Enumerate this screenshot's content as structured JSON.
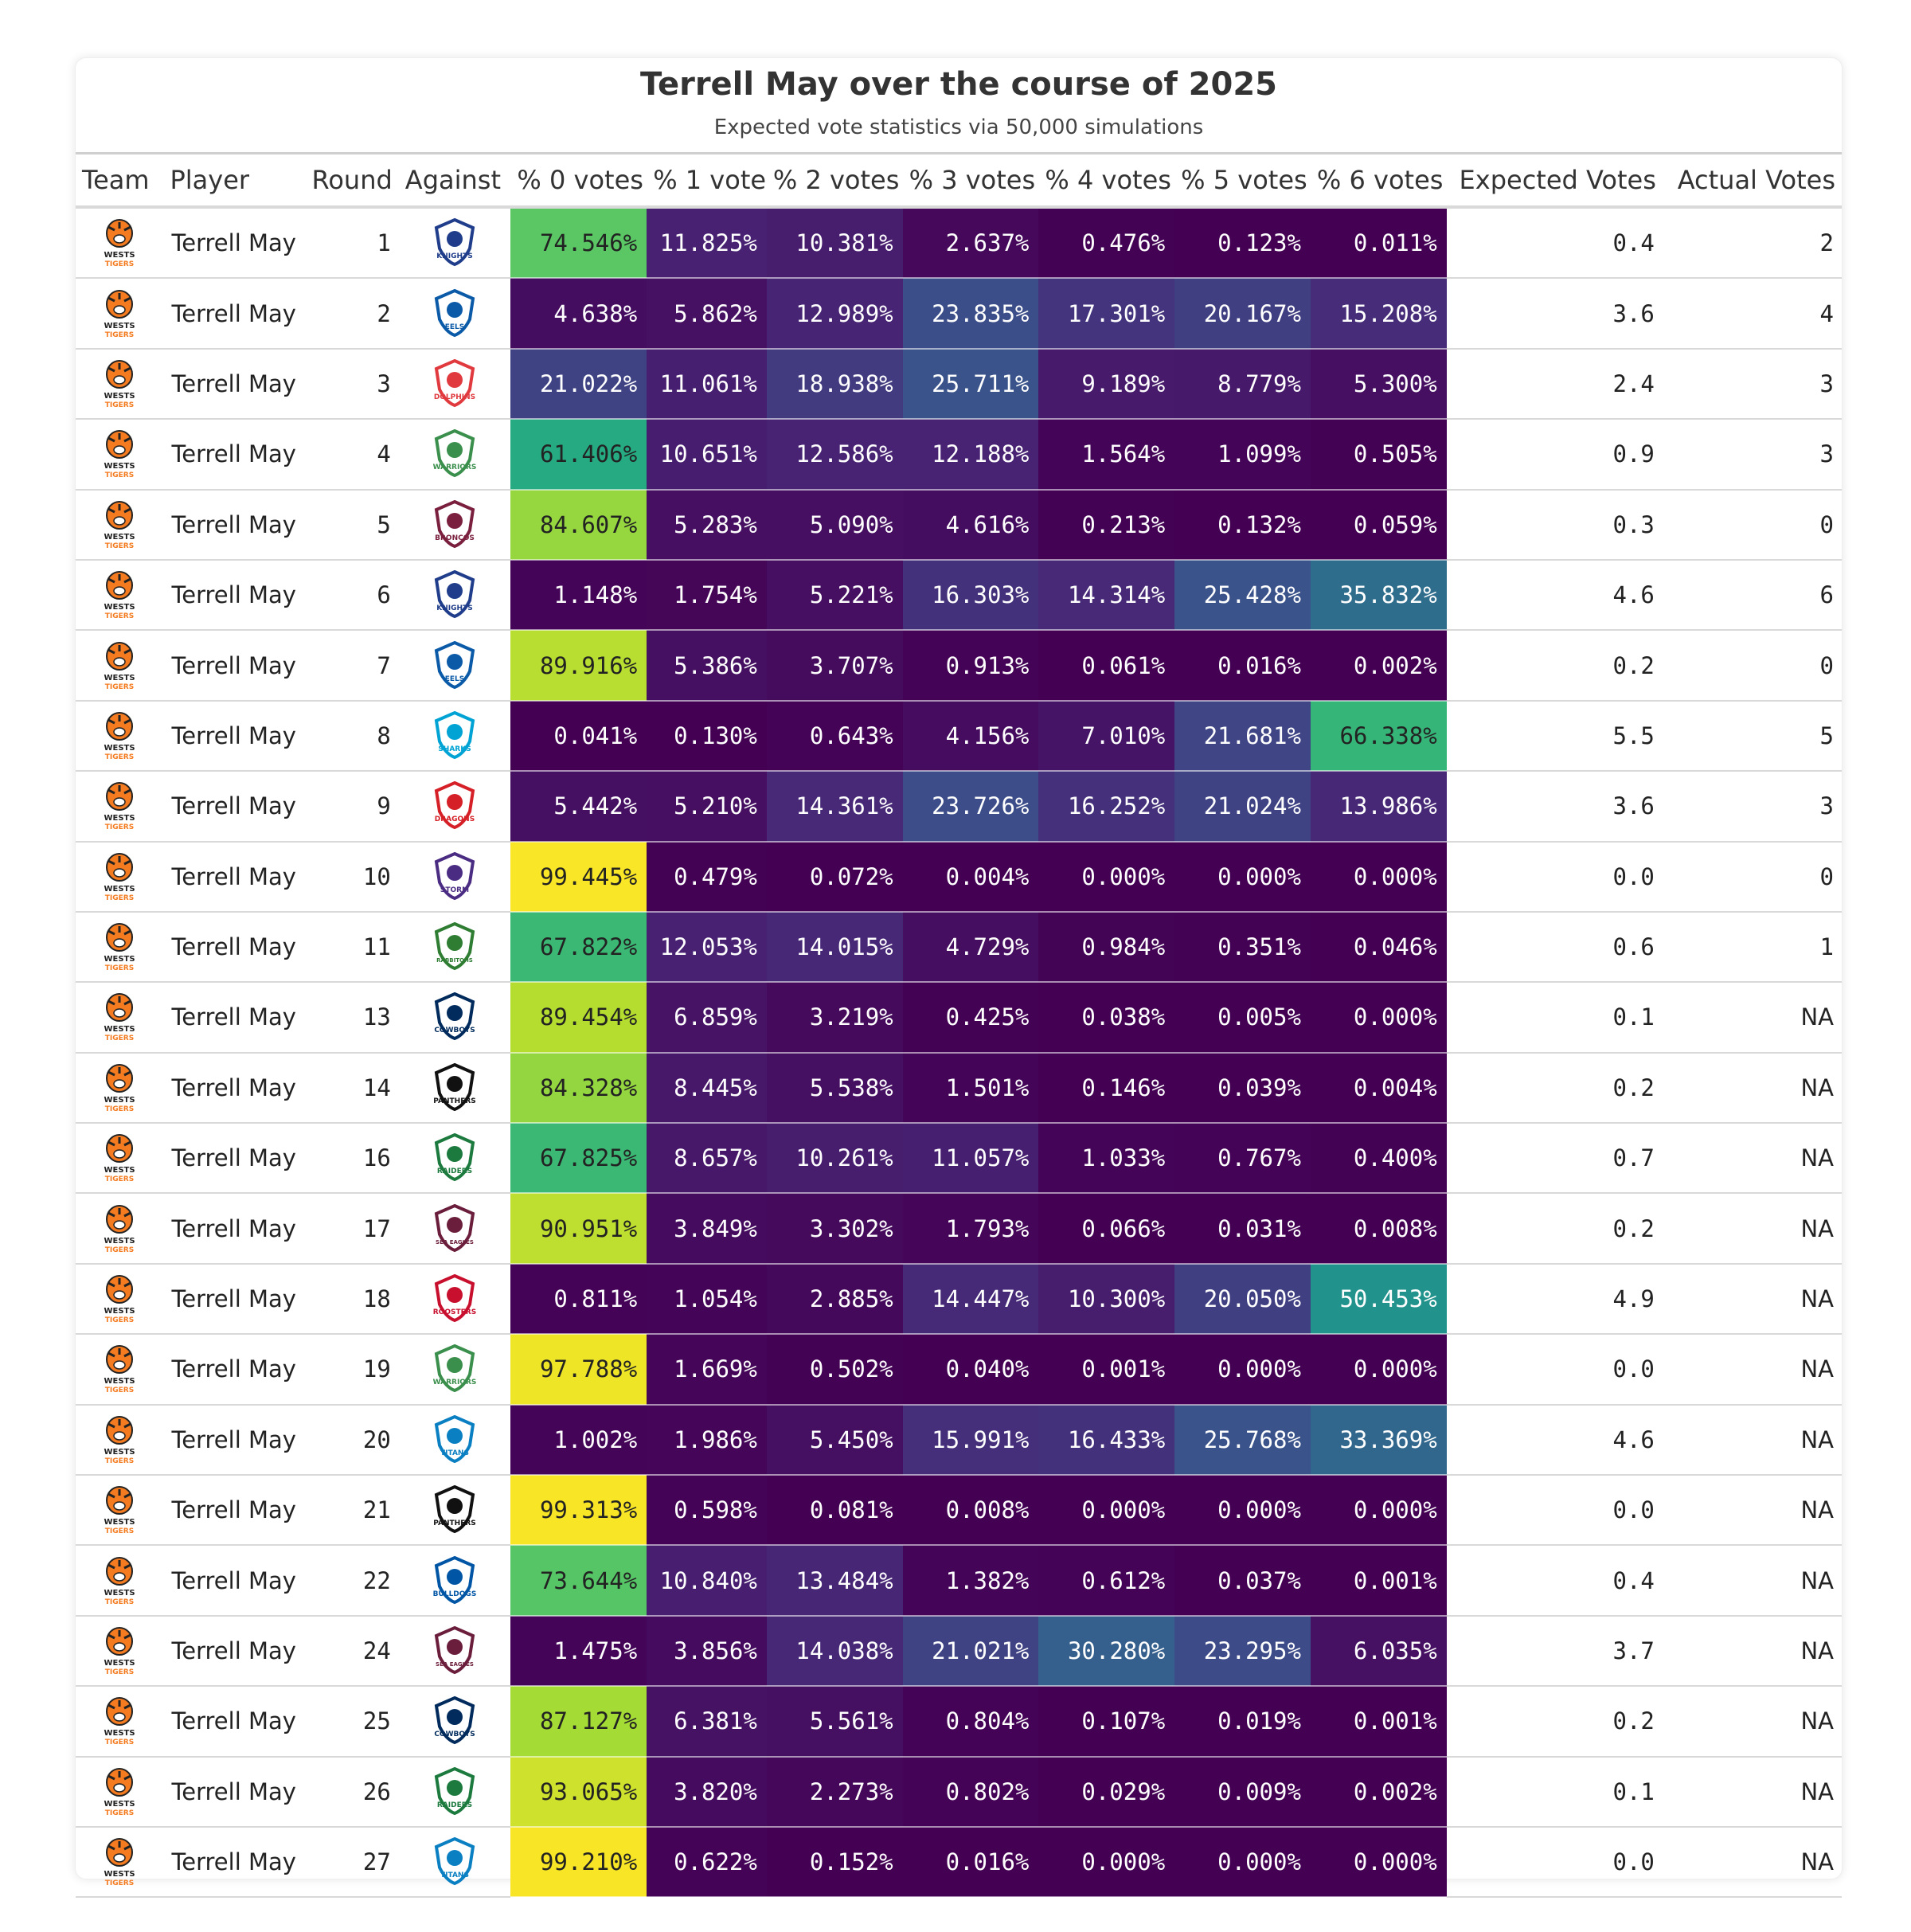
{
  "chart_data": {
    "type": "table",
    "title": "Terrell May over the course of 2025",
    "subtitle": "Expected vote statistics via 50,000 simulations",
    "columns": [
      "Team",
      "Player",
      "Round",
      "Against",
      "% 0 votes",
      "% 1 vote",
      "% 2 votes",
      "% 3 votes",
      "% 4 votes",
      "% 5 votes",
      "% 6 votes",
      "Expected Votes",
      "Actual Votes"
    ],
    "team": {
      "name": "WESTS TIGERS",
      "top": "WESTS",
      "bottom": "TIGERS",
      "color": "#f47b20"
    },
    "rows": [
      {
        "player": "Terrell May",
        "round": "1",
        "against": {
          "label": "KNIGHTS",
          "color": "#1f3d8a"
        },
        "pct": [
          "74.546%",
          "11.825%",
          "10.381%",
          "2.637%",
          "0.476%",
          "0.123%",
          "0.011%"
        ],
        "expected": "0.4",
        "actual": "2"
      },
      {
        "player": "Terrell May",
        "round": "2",
        "against": {
          "label": "EELS",
          "color": "#0a5aa8"
        },
        "pct": [
          "4.638%",
          "5.862%",
          "12.989%",
          "23.835%",
          "17.301%",
          "20.167%",
          "15.208%"
        ],
        "expected": "3.6",
        "actual": "4"
      },
      {
        "player": "Terrell May",
        "round": "3",
        "against": {
          "label": "DOLPHINS",
          "color": "#e03a3e"
        },
        "pct": [
          "21.022%",
          "11.061%",
          "18.938%",
          "25.711%",
          "9.189%",
          "8.779%",
          "5.300%"
        ],
        "expected": "2.4",
        "actual": "3"
      },
      {
        "player": "Terrell May",
        "round": "4",
        "against": {
          "label": "WARRIORS",
          "color": "#3b8f4c"
        },
        "pct": [
          "61.406%",
          "10.651%",
          "12.586%",
          "12.188%",
          "1.564%",
          "1.099%",
          "0.505%"
        ],
        "expected": "0.9",
        "actual": "3"
      },
      {
        "player": "Terrell May",
        "round": "5",
        "against": {
          "label": "BRONCOS",
          "color": "#7a1f3d"
        },
        "pct": [
          "84.607%",
          "5.283%",
          "5.090%",
          "4.616%",
          "0.213%",
          "0.132%",
          "0.059%"
        ],
        "expected": "0.3",
        "actual": "0"
      },
      {
        "player": "Terrell May",
        "round": "6",
        "against": {
          "label": "KNIGHTS",
          "color": "#1f3d8a"
        },
        "pct": [
          "1.148%",
          "1.754%",
          "5.221%",
          "16.303%",
          "14.314%",
          "25.428%",
          "35.832%"
        ],
        "expected": "4.6",
        "actual": "6"
      },
      {
        "player": "Terrell May",
        "round": "7",
        "against": {
          "label": "EELS",
          "color": "#0a5aa8"
        },
        "pct": [
          "89.916%",
          "5.386%",
          "3.707%",
          "0.913%",
          "0.061%",
          "0.016%",
          "0.002%"
        ],
        "expected": "0.2",
        "actual": "0"
      },
      {
        "player": "Terrell May",
        "round": "8",
        "against": {
          "label": "SHARKS",
          "color": "#00a3d4"
        },
        "pct": [
          "0.041%",
          "0.130%",
          "0.643%",
          "4.156%",
          "7.010%",
          "21.681%",
          "66.338%"
        ],
        "expected": "5.5",
        "actual": "5"
      },
      {
        "player": "Terrell May",
        "round": "9",
        "against": {
          "label": "DRAGONS",
          "color": "#d62027"
        },
        "pct": [
          "5.442%",
          "5.210%",
          "14.361%",
          "23.726%",
          "16.252%",
          "21.024%",
          "13.986%"
        ],
        "expected": "3.6",
        "actual": "3"
      },
      {
        "player": "Terrell May",
        "round": "10",
        "against": {
          "label": "STORM",
          "color": "#4b2c83"
        },
        "pct": [
          "99.445%",
          "0.479%",
          "0.072%",
          "0.004%",
          "0.000%",
          "0.000%",
          "0.000%"
        ],
        "expected": "0.0",
        "actual": "0"
      },
      {
        "player": "Terrell May",
        "round": "11",
        "against": {
          "label": "RABBITOHS",
          "color": "#2e7d32"
        },
        "pct": [
          "67.822%",
          "12.053%",
          "14.015%",
          "4.729%",
          "0.984%",
          "0.351%",
          "0.046%"
        ],
        "expected": "0.6",
        "actual": "1"
      },
      {
        "player": "Terrell May",
        "round": "13",
        "against": {
          "label": "COWBOYS",
          "color": "#002b5c"
        },
        "pct": [
          "89.454%",
          "6.859%",
          "3.219%",
          "0.425%",
          "0.038%",
          "0.005%",
          "0.000%"
        ],
        "expected": "0.1",
        "actual": "NA"
      },
      {
        "player": "Terrell May",
        "round": "14",
        "against": {
          "label": "PANTHERS",
          "color": "#111111"
        },
        "pct": [
          "84.328%",
          "8.445%",
          "5.538%",
          "1.501%",
          "0.146%",
          "0.039%",
          "0.004%"
        ],
        "expected": "0.2",
        "actual": "NA"
      },
      {
        "player": "Terrell May",
        "round": "16",
        "against": {
          "label": "RAIDERS",
          "color": "#1c7a3e"
        },
        "pct": [
          "67.825%",
          "8.657%",
          "10.261%",
          "11.057%",
          "1.033%",
          "0.767%",
          "0.400%"
        ],
        "expected": "0.7",
        "actual": "NA"
      },
      {
        "player": "Terrell May",
        "round": "17",
        "against": {
          "label": "SEA EAGLES",
          "color": "#6b1e3b"
        },
        "pct": [
          "90.951%",
          "3.849%",
          "3.302%",
          "1.793%",
          "0.066%",
          "0.031%",
          "0.008%"
        ],
        "expected": "0.2",
        "actual": "NA"
      },
      {
        "player": "Terrell May",
        "round": "18",
        "against": {
          "label": "ROOSTERS",
          "color": "#c8102e"
        },
        "pct": [
          "0.811%",
          "1.054%",
          "2.885%",
          "14.447%",
          "10.300%",
          "20.050%",
          "50.453%"
        ],
        "expected": "4.9",
        "actual": "NA"
      },
      {
        "player": "Terrell May",
        "round": "19",
        "against": {
          "label": "WARRIORS",
          "color": "#3b8f4c"
        },
        "pct": [
          "97.788%",
          "1.669%",
          "0.502%",
          "0.040%",
          "0.001%",
          "0.000%",
          "0.000%"
        ],
        "expected": "0.0",
        "actual": "NA"
      },
      {
        "player": "Terrell May",
        "round": "20",
        "against": {
          "label": "TITANS",
          "color": "#0a7fc2"
        },
        "pct": [
          "1.002%",
          "1.986%",
          "5.450%",
          "15.991%",
          "16.433%",
          "25.768%",
          "33.369%"
        ],
        "expected": "4.6",
        "actual": "NA"
      },
      {
        "player": "Terrell May",
        "round": "21",
        "against": {
          "label": "PANTHERS",
          "color": "#111111"
        },
        "pct": [
          "99.313%",
          "0.598%",
          "0.081%",
          "0.008%",
          "0.000%",
          "0.000%",
          "0.000%"
        ],
        "expected": "0.0",
        "actual": "NA"
      },
      {
        "player": "Terrell May",
        "round": "22",
        "against": {
          "label": "BULLDOGS",
          "color": "#0055a5"
        },
        "pct": [
          "73.644%",
          "10.840%",
          "13.484%",
          "1.382%",
          "0.612%",
          "0.037%",
          "0.001%"
        ],
        "expected": "0.4",
        "actual": "NA"
      },
      {
        "player": "Terrell May",
        "round": "24",
        "against": {
          "label": "SEA EAGLES",
          "color": "#6b1e3b"
        },
        "pct": [
          "1.475%",
          "3.856%",
          "14.038%",
          "21.021%",
          "30.280%",
          "23.295%",
          "6.035%"
        ],
        "expected": "3.7",
        "actual": "NA"
      },
      {
        "player": "Terrell May",
        "round": "25",
        "against": {
          "label": "COWBOYS",
          "color": "#002b5c"
        },
        "pct": [
          "87.127%",
          "6.381%",
          "5.561%",
          "0.804%",
          "0.107%",
          "0.019%",
          "0.001%"
        ],
        "expected": "0.2",
        "actual": "NA"
      },
      {
        "player": "Terrell May",
        "round": "26",
        "against": {
          "label": "RAIDERS",
          "color": "#1c7a3e"
        },
        "pct": [
          "93.065%",
          "3.820%",
          "2.273%",
          "0.802%",
          "0.029%",
          "0.009%",
          "0.002%"
        ],
        "expected": "0.1",
        "actual": "NA"
      },
      {
        "player": "Terrell May",
        "round": "27",
        "against": {
          "label": "TITANS",
          "color": "#0a7fc2"
        },
        "pct": [
          "99.210%",
          "0.622%",
          "0.152%",
          "0.016%",
          "0.000%",
          "0.000%",
          "0.000%"
        ],
        "expected": "0.0",
        "actual": "NA"
      }
    ],
    "color_scale": {
      "name": "viridis",
      "domain": [
        0,
        100
      ],
      "low": "#440154",
      "high": "#fde725"
    }
  }
}
